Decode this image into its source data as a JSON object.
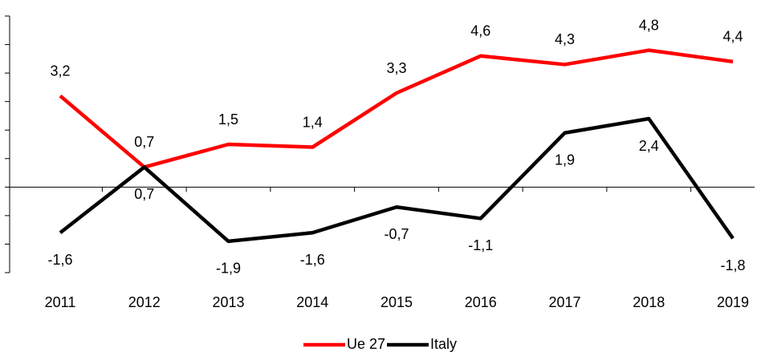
{
  "chart_data": {
    "type": "line",
    "categories": [
      "2011",
      "2012",
      "2013",
      "2014",
      "2015",
      "2016",
      "2017",
      "2018",
      "2019"
    ],
    "series": [
      {
        "name": "Ue 27",
        "color": "#ff0000",
        "values": [
          3.2,
          0.7,
          1.5,
          1.4,
          3.3,
          4.6,
          4.3,
          4.8,
          4.4
        ],
        "value_labels": [
          "3,2",
          "0,7",
          "1,5",
          "1,4",
          "3,3",
          "4,6",
          "4,3",
          "4,8",
          "4,4"
        ]
      },
      {
        "name": "Italy",
        "color": "#000000",
        "values": [
          -1.6,
          0.7,
          -1.9,
          -1.6,
          -0.7,
          -1.1,
          1.9,
          2.4,
          -1.8
        ],
        "value_labels": [
          "-1,6",
          "0,7",
          "-1,9",
          "-1,6",
          "-0,7",
          "-1,1",
          "1,9",
          "2,4",
          "-1,8"
        ]
      }
    ],
    "ylim": [
      -3,
      6
    ],
    "yticks": [
      -3,
      -2,
      -1,
      0,
      1,
      2,
      3,
      4,
      5,
      6
    ],
    "legend": "bottom"
  }
}
